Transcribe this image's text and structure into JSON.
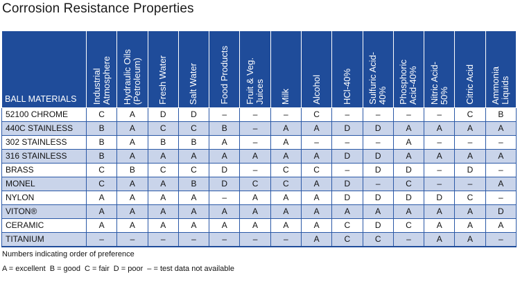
{
  "title": "Corrosion Resistance Properties",
  "colors": {
    "header_bg": "#1f4c9a",
    "band": "#c9d4ea",
    "grid": "#2a58a6"
  },
  "corner_label": "BALL MATERIALS",
  "columns": [
    "Industrial\nAtmosphere",
    "Hydraulic Oils\n(Petroleum)",
    "Fresh Water",
    "Salt Water",
    "Food Products",
    "Fruit & Veg.\nJuices",
    "Milk",
    "Alcohol",
    "HCl-40%",
    "Sulfuric Acid-\n40%",
    "Phosphoric\nAcid-40%",
    "Nitric Acid-\n50%",
    "Citric Acid",
    "Ammonia\nLiquids"
  ],
  "rows": [
    {
      "material": "52100 CHROME",
      "values": [
        "C",
        "A",
        "D",
        "D",
        "–",
        "–",
        "–",
        "C",
        "–",
        "–",
        "–",
        "–",
        "C",
        "B"
      ]
    },
    {
      "material": "440C STAINLESS",
      "values": [
        "B",
        "A",
        "C",
        "C",
        "B",
        "–",
        "A",
        "A",
        "D",
        "D",
        "A",
        "A",
        "A",
        "A"
      ]
    },
    {
      "material": "302 STAINLESS",
      "values": [
        "B",
        "A",
        "B",
        "B",
        "A",
        "–",
        "A",
        "–",
        "–",
        "–",
        "A",
        "–",
        "–",
        "–"
      ]
    },
    {
      "material": "316 STAINLESS",
      "values": [
        "B",
        "A",
        "A",
        "A",
        "A",
        "A",
        "A",
        "A",
        "D",
        "D",
        "A",
        "A",
        "A",
        "A"
      ]
    },
    {
      "material": "BRASS",
      "values": [
        "C",
        "B",
        "C",
        "C",
        "D",
        "–",
        "C",
        "C",
        "–",
        "D",
        "D",
        "–",
        "D",
        "–"
      ]
    },
    {
      "material": "MONEL",
      "values": [
        "C",
        "A",
        "A",
        "B",
        "D",
        "C",
        "C",
        "A",
        "D",
        "–",
        "C",
        "–",
        "–",
        "A"
      ]
    },
    {
      "material": "NYLON",
      "values": [
        "A",
        "A",
        "A",
        "A",
        "–",
        "A",
        "A",
        "A",
        "D",
        "D",
        "D",
        "D",
        "C",
        "–"
      ]
    },
    {
      "material": "VITON®",
      "values": [
        "A",
        "A",
        "A",
        "A",
        "A",
        "A",
        "A",
        "A",
        "A",
        "A",
        "A",
        "A",
        "A",
        "D"
      ]
    },
    {
      "material": "CERAMIC",
      "values": [
        "A",
        "A",
        "A",
        "A",
        "A",
        "A",
        "A",
        "A",
        "C",
        "D",
        "C",
        "A",
        "A",
        "A"
      ]
    },
    {
      "material": "TITANIUM",
      "values": [
        "–",
        "–",
        "–",
        "–",
        "–",
        "–",
        "–",
        "A",
        "C",
        "C",
        "–",
        "A",
        "A",
        "–"
      ]
    }
  ],
  "notes": {
    "order": "Numbers indicating order of preference",
    "legend": [
      "A = excellent",
      "B = good",
      "C = fair",
      "D = poor",
      "– = test data not available"
    ]
  }
}
